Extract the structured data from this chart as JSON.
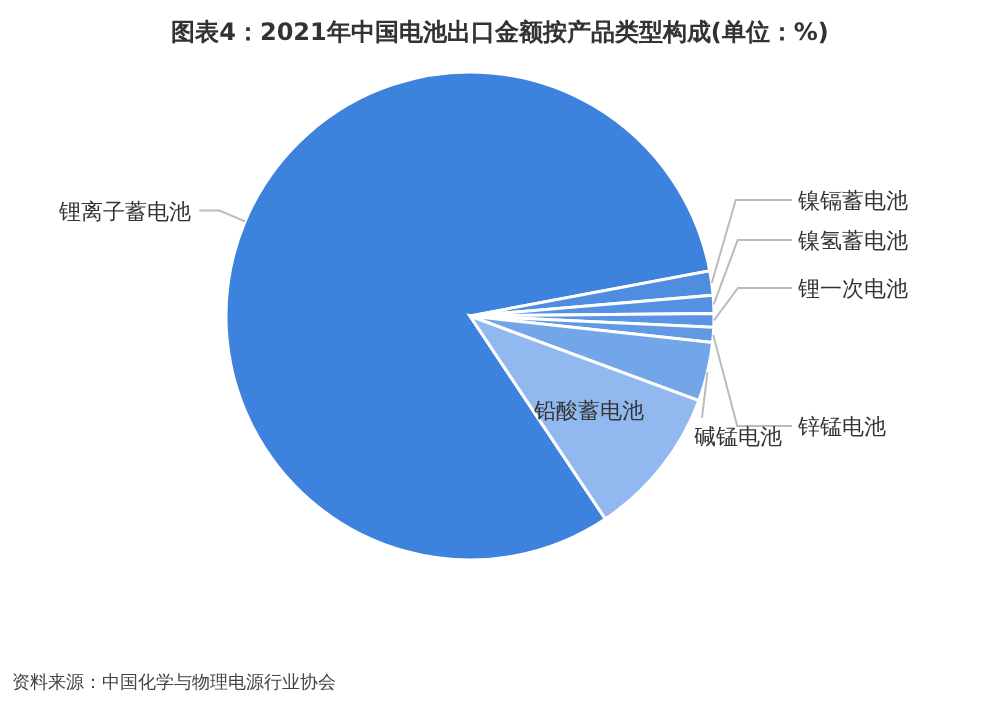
{
  "chart_data": {
    "type": "pie",
    "title": "图表4：2021年中国电池出口金额按产品类型构成(单位：%)",
    "categories": [
      "锂离子蓄电池",
      "镍镉蓄电池",
      "镍氢蓄电池",
      "锂一次电池",
      "锌锰电池",
      "碱锰电池",
      "铅酸蓄电池"
    ],
    "values": [
      81.4,
      1.6,
      1.2,
      0.9,
      1.0,
      3.9,
      10.0
    ],
    "colors": [
      "#3d82dc",
      "#4f8de0",
      "#5591e2",
      "#5a95e3",
      "#6199e4",
      "#73a5e9",
      "#91b9ef"
    ],
    "annotations": [
      "资料来源：中国化学与物理电源行业协会"
    ]
  }
}
